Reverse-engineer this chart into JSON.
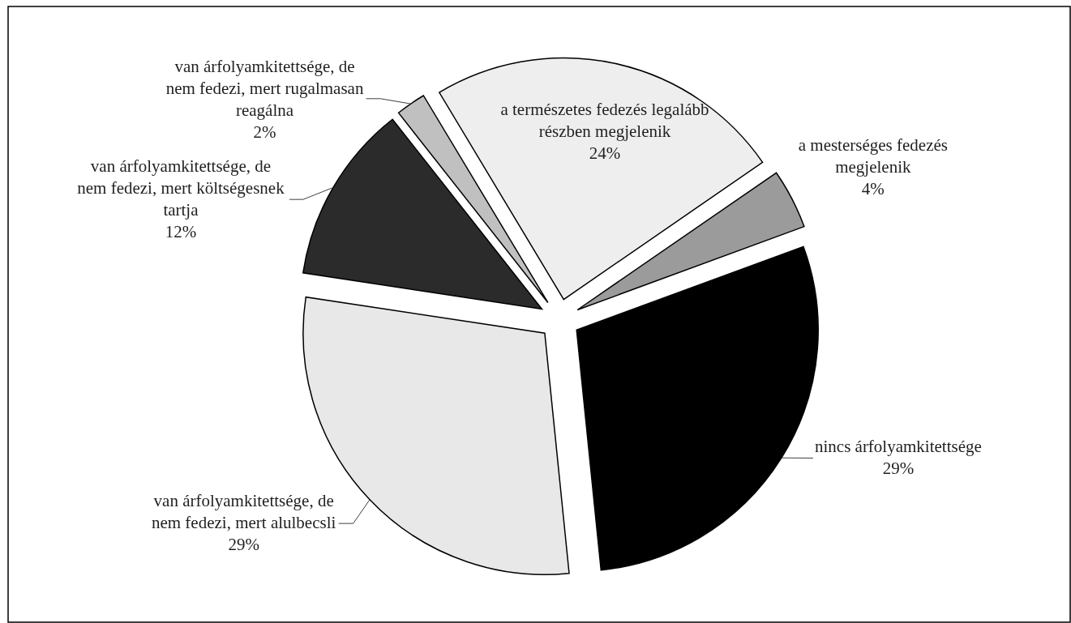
{
  "chart_data": {
    "type": "pie",
    "categories": [
      "a természetes fedezés legalább részben megjelenik",
      "a mesterséges fedezés megjelenik",
      "nincs árfolyamkitettsége",
      "van árfolyamkitettsége, de nem fedezi, mert alulbecsli",
      "van árfolyamkitettsége, de nem fedezi, mert költségesnek tartja",
      "van árfolyamkitettsége, de nem fedezi, mert rugalmasan reagálna"
    ],
    "values": [
      24,
      4,
      29,
      29,
      12,
      2
    ],
    "colors": [
      "#eeeeee",
      "#9b9b9b",
      "#000000",
      "#e8e8e8",
      "#2b2b2b",
      "#c0c0c0"
    ],
    "value_labels": [
      "24%",
      "4%",
      "29%",
      "29%",
      "12%",
      "2%"
    ]
  }
}
